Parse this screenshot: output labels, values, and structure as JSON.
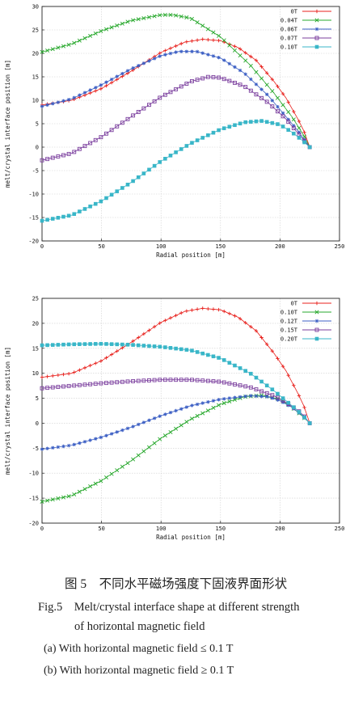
{
  "chart_data": [
    {
      "type": "line",
      "xlabel": "Radial position [m]",
      "ylabel": "melt/crystal interface position [m]",
      "xlim": [
        0,
        250
      ],
      "ylim": [
        -20,
        30
      ],
      "xticks": [
        0,
        50,
        100,
        150,
        200,
        250
      ],
      "yticks": [
        -20,
        -15,
        -10,
        -5,
        0,
        5,
        10,
        15,
        20,
        25,
        30
      ],
      "legend_position": "top-right",
      "grid": true,
      "series": [
        {
          "name": "0T",
          "color": "#e8201c",
          "marker": "plus",
          "x": [
            0,
            25,
            50,
            75,
            100,
            120,
            135,
            150,
            165,
            180,
            195,
            205,
            215,
            220,
            225
          ],
          "y": [
            9,
            10,
            12.5,
            16.2,
            20.2,
            22.4,
            23,
            22.7,
            21.2,
            18.5,
            14,
            10.5,
            6,
            3.5,
            0
          ]
        },
        {
          "name": "0.04T",
          "color": "#27a82c",
          "marker": "x",
          "x": [
            0,
            25,
            50,
            75,
            100,
            110,
            125,
            150,
            175,
            195,
            210,
            220,
            225
          ],
          "y": [
            20.3,
            22,
            24.8,
            27,
            28.2,
            28.2,
            27.5,
            23.5,
            17.5,
            11.5,
            6.5,
            2.5,
            0
          ]
        },
        {
          "name": "0.06T",
          "color": "#3c5fc4",
          "marker": "star",
          "x": [
            0,
            25,
            50,
            75,
            100,
            115,
            130,
            150,
            170,
            190,
            205,
            215,
            225
          ],
          "y": [
            8.7,
            10.3,
            13.3,
            16.7,
            19.5,
            20.4,
            20.4,
            19,
            15.8,
            11,
            6.5,
            3.5,
            0
          ]
        },
        {
          "name": "0.07T",
          "color": "#7b3f9e",
          "marker": "square-open",
          "x": [
            0,
            25,
            50,
            75,
            100,
            125,
            140,
            150,
            170,
            190,
            205,
            215,
            225
          ],
          "y": [
            -2.8,
            -1.3,
            2.2,
            6.5,
            10.7,
            14,
            15,
            14.8,
            13,
            9.5,
            6,
            3,
            0
          ]
        },
        {
          "name": "0.10T",
          "color": "#39b6c8",
          "marker": "square-filled",
          "x": [
            0,
            25,
            50,
            75,
            100,
            125,
            150,
            170,
            185,
            200,
            210,
            218,
            225
          ],
          "y": [
            -15.7,
            -14.5,
            -11.5,
            -7.5,
            -3,
            0.8,
            3.8,
            5.3,
            5.6,
            4.8,
            3.2,
            1.6,
            0
          ]
        }
      ]
    },
    {
      "type": "line",
      "xlabel": "Radial position [m]",
      "ylabel": "melt/crystal interface position [m]",
      "xlim": [
        0,
        250
      ],
      "ylim": [
        -20,
        25
      ],
      "xticks": [
        0,
        50,
        100,
        150,
        200,
        250
      ],
      "yticks": [
        -20,
        -15,
        -10,
        -5,
        0,
        5,
        10,
        15,
        20,
        25
      ],
      "legend_position": "top-right",
      "grid": true,
      "series": [
        {
          "name": "0T",
          "color": "#e8201c",
          "marker": "plus",
          "x": [
            0,
            25,
            50,
            75,
            100,
            120,
            135,
            150,
            165,
            180,
            195,
            205,
            215,
            220,
            225
          ],
          "y": [
            9.2,
            10,
            12.5,
            16.2,
            20.2,
            22.4,
            23,
            22.7,
            21.2,
            18.5,
            14,
            10.5,
            6,
            3.5,
            0
          ]
        },
        {
          "name": "0.10T",
          "color": "#27a82c",
          "marker": "x",
          "x": [
            0,
            25,
            50,
            75,
            100,
            125,
            150,
            170,
            185,
            200,
            210,
            218,
            225
          ],
          "y": [
            -15.7,
            -14.5,
            -11.5,
            -7.5,
            -3,
            0.8,
            3.8,
            5.3,
            5.6,
            4.8,
            3.2,
            1.6,
            0
          ]
        },
        {
          "name": "0.12T",
          "color": "#3c5fc4",
          "marker": "star",
          "x": [
            0,
            25,
            50,
            75,
            100,
            125,
            150,
            175,
            190,
            200,
            210,
            218,
            225
          ],
          "y": [
            -5.2,
            -4.4,
            -2.8,
            -0.8,
            1.5,
            3.5,
            4.8,
            5.5,
            5.3,
            4.5,
            3.2,
            1.7,
            0
          ]
        },
        {
          "name": "0.15T",
          "color": "#7b3f9e",
          "marker": "square-open",
          "x": [
            0,
            25,
            50,
            75,
            100,
            125,
            150,
            175,
            195,
            205,
            215,
            220,
            225
          ],
          "y": [
            7,
            7.5,
            8,
            8.4,
            8.7,
            8.7,
            8.3,
            7.2,
            5.5,
            4.2,
            2.6,
            1.5,
            0
          ]
        },
        {
          "name": "0.20T",
          "color": "#39b6c8",
          "marker": "square-filled",
          "x": [
            0,
            25,
            50,
            75,
            100,
            125,
            150,
            175,
            195,
            205,
            215,
            220,
            225
          ],
          "y": [
            15.6,
            15.8,
            15.9,
            15.7,
            15.3,
            14.6,
            13,
            10,
            6.5,
            4.5,
            2.5,
            1.3,
            0
          ]
        }
      ]
    }
  ],
  "caption": {
    "chinese": "图 5　不同水平磁场强度下固液界面形状",
    "english_line1": "Fig.5　Melt/crystal interface shape at different strength",
    "english_line2": "of horizontal magnetic field",
    "sub_a": "(a) With horizontal magnetic field ≤ 0.1 T",
    "sub_b": "(b) With horizontal magnetic field ≥ 0.1 T"
  }
}
